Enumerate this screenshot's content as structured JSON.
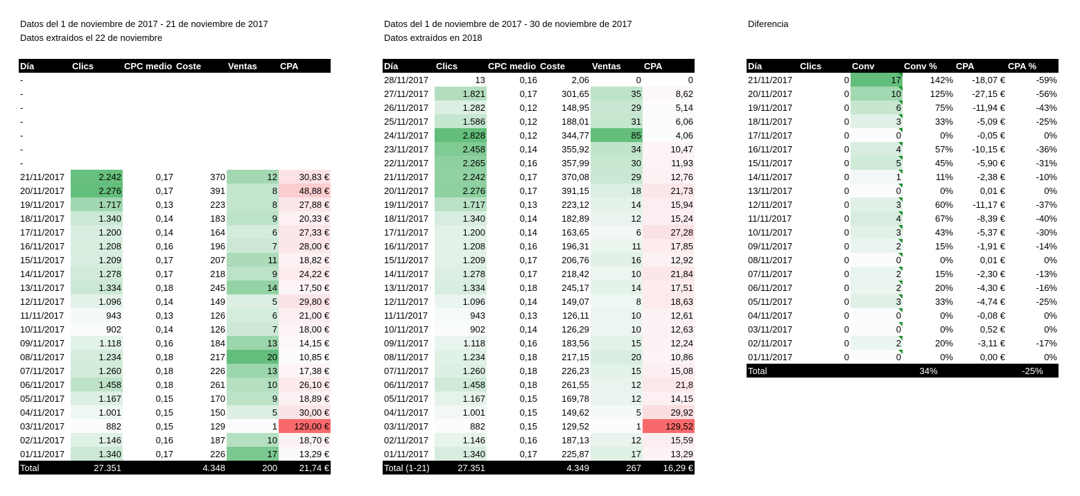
{
  "t1": {
    "line1": "Datos del 1 de noviembre de 2017 - 21 de noviembre de 2017",
    "line2": "Datos extraídos el 22 de noviembre",
    "headers": [
      "Día",
      "Clics",
      "CPC medio",
      "Coste",
      "Ventas",
      "CPA"
    ],
    "rows": [
      [
        "-",
        "",
        "",
        "",
        "",
        ""
      ],
      [
        "-",
        "",
        "",
        "",
        "",
        ""
      ],
      [
        "-",
        "",
        "",
        "",
        "",
        ""
      ],
      [
        "-",
        "",
        "",
        "",
        "",
        ""
      ],
      [
        "-",
        "",
        "",
        "",
        "",
        ""
      ],
      [
        "-",
        "",
        "",
        "",
        "",
        ""
      ],
      [
        "-",
        "",
        "",
        "",
        "",
        ""
      ],
      [
        "21/11/2017",
        "2.242",
        "0,17",
        "370",
        "12",
        "30,83 €"
      ],
      [
        "20/11/2017",
        "2.276",
        "0,17",
        "391",
        "8",
        "48,88 €"
      ],
      [
        "19/11/2017",
        "1.717",
        "0,13",
        "223",
        "8",
        "27,88 €"
      ],
      [
        "18/11/2017",
        "1.340",
        "0,14",
        "183",
        "9",
        "20,33 €"
      ],
      [
        "17/11/2017",
        "1.200",
        "0,14",
        "164",
        "6",
        "27,33 €"
      ],
      [
        "16/11/2017",
        "1.208",
        "0,16",
        "196",
        "7",
        "28,00 €"
      ],
      [
        "15/11/2017",
        "1.209",
        "0,17",
        "207",
        "11",
        "18,82 €"
      ],
      [
        "14/11/2017",
        "1.278",
        "0,17",
        "218",
        "9",
        "24,22 €"
      ],
      [
        "13/11/2017",
        "1.334",
        "0,18",
        "245",
        "14",
        "17,50 €"
      ],
      [
        "12/11/2017",
        "1.096",
        "0,14",
        "149",
        "5",
        "29,80 €"
      ],
      [
        "11/11/2017",
        "943",
        "0,13",
        "126",
        "6",
        "21,00 €"
      ],
      [
        "10/11/2017",
        "902",
        "0,14",
        "126",
        "7",
        "18,00 €"
      ],
      [
        "09/11/2017",
        "1.118",
        "0,16",
        "184",
        "13",
        "14,15 €"
      ],
      [
        "08/11/2017",
        "1.234",
        "0,18",
        "217",
        "20",
        "10,85 €"
      ],
      [
        "07/11/2017",
        "1.260",
        "0,18",
        "226",
        "13",
        "17,38 €"
      ],
      [
        "06/11/2017",
        "1.458",
        "0,18",
        "261",
        "10",
        "26,10 €"
      ],
      [
        "05/11/2017",
        "1.167",
        "0,15",
        "170",
        "9",
        "18,89 €"
      ],
      [
        "04/11/2017",
        "1.001",
        "0,15",
        "150",
        "5",
        "30,00 €"
      ],
      [
        "03/11/2017",
        "882",
        "0,15",
        "129",
        "1",
        "129,00 €"
      ],
      [
        "02/11/2017",
        "1.146",
        "0,16",
        "187",
        "10",
        "18,70 €"
      ],
      [
        "01/11/2017",
        "1.340",
        "0,17",
        "226",
        "17",
        "13,29 €"
      ]
    ],
    "total": [
      "Total",
      "27.351",
      "",
      "4.348",
      "200",
      "21,74 €"
    ]
  },
  "t2": {
    "line1": "Datos del 1 de noviembre de 2017 - 30 de noviembre de 2017",
    "line2": "Datos extraídos en 2018",
    "headers": [
      "Día",
      "Clics",
      "CPC medio",
      "Coste",
      "Ventas",
      "CPA"
    ],
    "rows": [
      [
        "28/11/2017",
        "13",
        "0,16",
        "2,06",
        "0",
        "0"
      ],
      [
        "27/11/2017",
        "1.821",
        "0,17",
        "301,65",
        "35",
        "8,62"
      ],
      [
        "26/11/2017",
        "1.282",
        "0,12",
        "148,95",
        "29",
        "5,14"
      ],
      [
        "25/11/2017",
        "1.586",
        "0,12",
        "188,01",
        "31",
        "6,06"
      ],
      [
        "24/11/2017",
        "2.828",
        "0,12",
        "344,77",
        "85",
        "4,06"
      ],
      [
        "23/11/2017",
        "2.458",
        "0,14",
        "355,92",
        "34",
        "10,47"
      ],
      [
        "22/11/2017",
        "2.265",
        "0,16",
        "357,99",
        "30",
        "11,93"
      ],
      [
        "21/11/2017",
        "2.242",
        "0,17",
        "370,08",
        "29",
        "12,76"
      ],
      [
        "20/11/2017",
        "2.276",
        "0,17",
        "391,15",
        "18",
        "21,73"
      ],
      [
        "19/11/2017",
        "1.717",
        "0,13",
        "223,12",
        "14",
        "15,94"
      ],
      [
        "18/11/2017",
        "1.340",
        "0,14",
        "182,89",
        "12",
        "15,24"
      ],
      [
        "17/11/2017",
        "1.200",
        "0,14",
        "163,65",
        "6",
        "27,28"
      ],
      [
        "16/11/2017",
        "1.208",
        "0,16",
        "196,31",
        "11",
        "17,85"
      ],
      [
        "15/11/2017",
        "1.209",
        "0,17",
        "206,76",
        "16",
        "12,92"
      ],
      [
        "14/11/2017",
        "1.278",
        "0,17",
        "218,42",
        "10",
        "21,84"
      ],
      [
        "13/11/2017",
        "1.334",
        "0,18",
        "245,17",
        "14",
        "17,51"
      ],
      [
        "12/11/2017",
        "1.096",
        "0,14",
        "149,07",
        "8",
        "18,63"
      ],
      [
        "11/11/2017",
        "943",
        "0,13",
        "126,11",
        "10",
        "12,61"
      ],
      [
        "10/11/2017",
        "902",
        "0,14",
        "126,29",
        "10",
        "12,63"
      ],
      [
        "09/11/2017",
        "1.118",
        "0,16",
        "183,56",
        "15",
        "12,24"
      ],
      [
        "08/11/2017",
        "1.234",
        "0,18",
        "217,15",
        "20",
        "10,86"
      ],
      [
        "07/11/2017",
        "1.260",
        "0,18",
        "226,23",
        "15",
        "15,08"
      ],
      [
        "06/11/2017",
        "1.458",
        "0,18",
        "261,55",
        "12",
        "21,8"
      ],
      [
        "05/11/2017",
        "1.167",
        "0,15",
        "169,78",
        "12",
        "14,15"
      ],
      [
        "04/11/2017",
        "1.001",
        "0,15",
        "149,62",
        "5",
        "29,92"
      ],
      [
        "03/11/2017",
        "882",
        "0,15",
        "129,52",
        "1",
        "129,52"
      ],
      [
        "02/11/2017",
        "1.146",
        "0,16",
        "187,13",
        "12",
        "15,59"
      ],
      [
        "01/11/2017",
        "1.340",
        "0,17",
        "225,87",
        "17",
        "13,29"
      ]
    ],
    "total": [
      "Total (1-21)",
      "27.351",
      "",
      "4.349",
      "267",
      "16,29 €"
    ]
  },
  "t3": {
    "line1": "Diferencia",
    "headers": [
      "Día",
      "Clics",
      "Conv",
      "Conv %",
      "CPA",
      "CPA %"
    ],
    "rows": [
      [
        "21/11/2017",
        "0",
        "17",
        "142%",
        "-18,07 €",
        "-59%"
      ],
      [
        "20/11/2017",
        "0",
        "10",
        "125%",
        "-27,15 €",
        "-56%"
      ],
      [
        "19/11/2017",
        "0",
        "6",
        "75%",
        "-11,94 €",
        "-43%"
      ],
      [
        "18/11/2017",
        "0",
        "3",
        "33%",
        "-5,09 €",
        "-25%"
      ],
      [
        "17/11/2017",
        "0",
        "0",
        "0%",
        "-0,05 €",
        "0%"
      ],
      [
        "16/11/2017",
        "0",
        "4",
        "57%",
        "-10,15 €",
        "-36%"
      ],
      [
        "15/11/2017",
        "0",
        "5",
        "45%",
        "-5,90 €",
        "-31%"
      ],
      [
        "14/11/2017",
        "0",
        "1",
        "11%",
        "-2,38 €",
        "-10%"
      ],
      [
        "13/11/2017",
        "0",
        "0",
        "0%",
        "0,01 €",
        "0%"
      ],
      [
        "12/11/2017",
        "0",
        "3",
        "60%",
        "-11,17 €",
        "-37%"
      ],
      [
        "11/11/2017",
        "0",
        "4",
        "67%",
        "-8,39 €",
        "-40%"
      ],
      [
        "10/11/2017",
        "0",
        "3",
        "43%",
        "-5,37 €",
        "-30%"
      ],
      [
        "09/11/2017",
        "0",
        "2",
        "15%",
        "-1,91 €",
        "-14%"
      ],
      [
        "08/11/2017",
        "0",
        "0",
        "0%",
        "0,01 €",
        "0%"
      ],
      [
        "07/11/2017",
        "0",
        "2",
        "15%",
        "-2,30 €",
        "-13%"
      ],
      [
        "06/11/2017",
        "0",
        "2",
        "20%",
        "-4,30 €",
        "-16%"
      ],
      [
        "05/11/2017",
        "0",
        "3",
        "33%",
        "-4,74 €",
        "-25%"
      ],
      [
        "04/11/2017",
        "0",
        "0",
        "0%",
        "-0,08 €",
        "0%"
      ],
      [
        "03/11/2017",
        "0",
        "0",
        "0%",
        "0,52 €",
        "0%"
      ],
      [
        "02/11/2017",
        "0",
        "2",
        "20%",
        "-3,11 €",
        "-17%"
      ],
      [
        "01/11/2017",
        "0",
        "0",
        "0%",
        "0,00 €",
        "0%"
      ]
    ],
    "total": [
      "Total",
      "",
      "",
      "34%",
      "",
      "-25%"
    ]
  }
}
